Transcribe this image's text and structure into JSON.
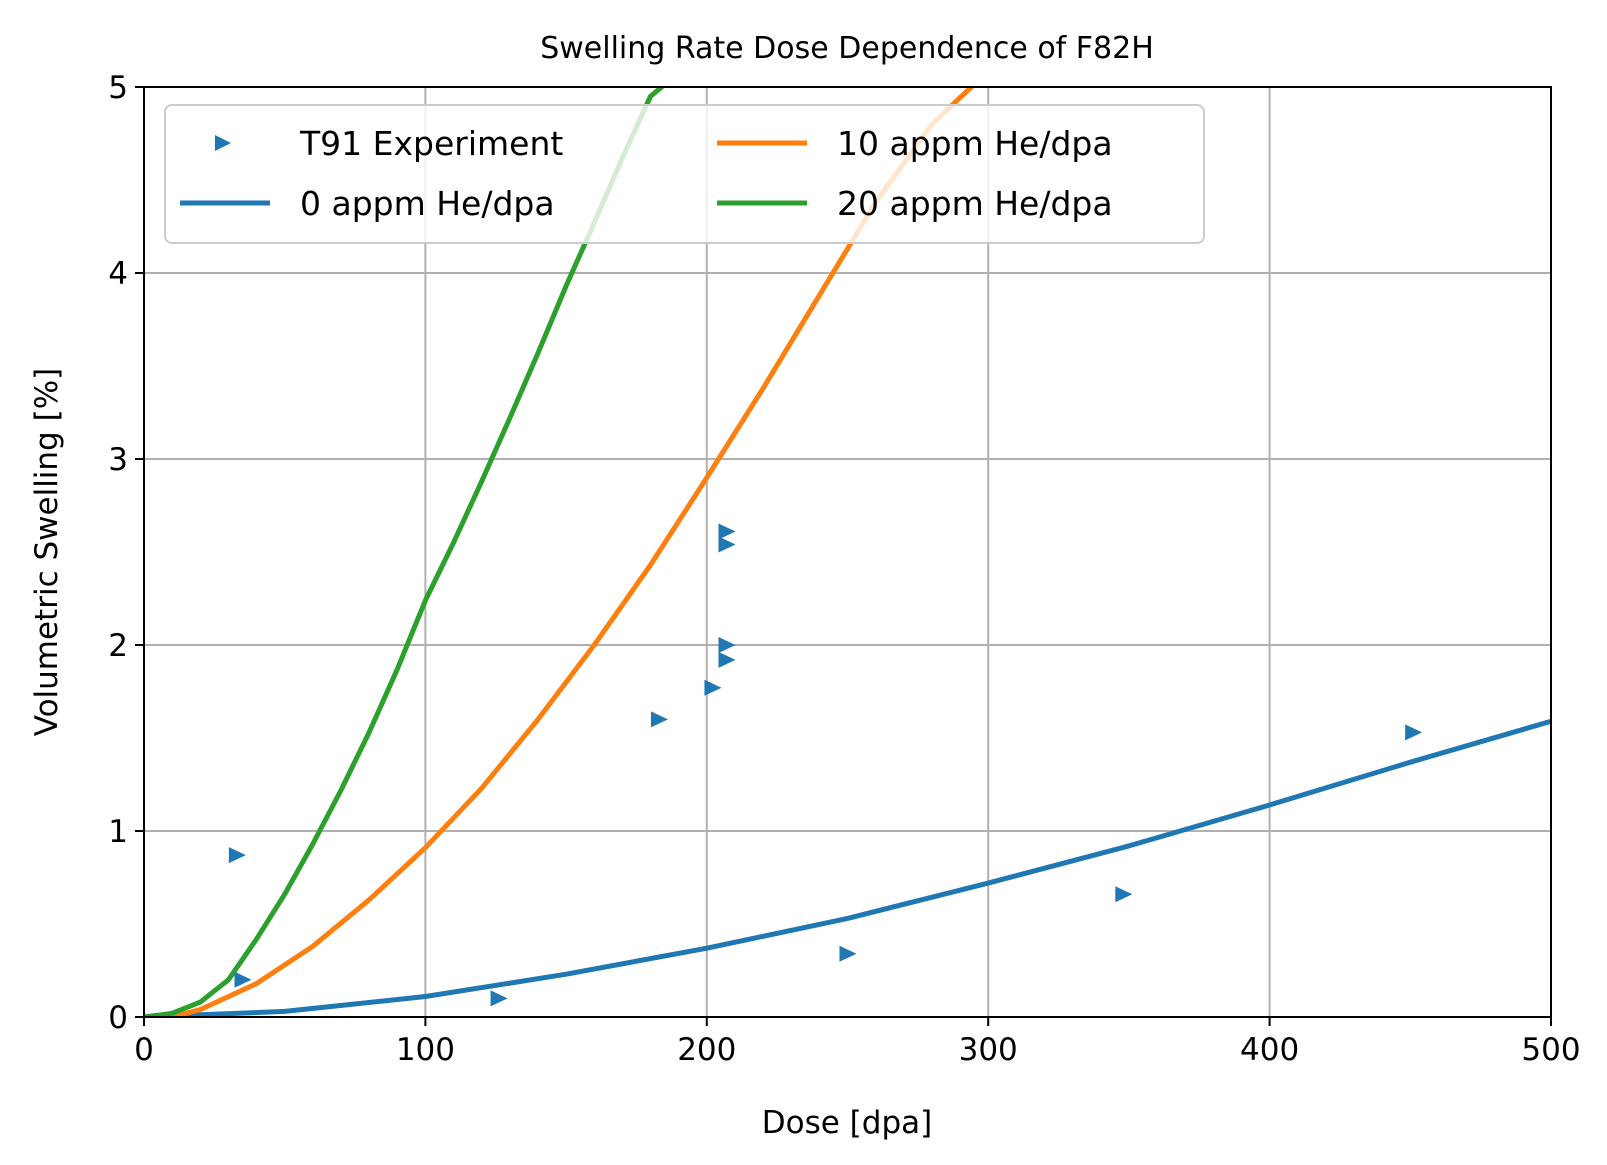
{
  "chart_data": {
    "type": "line",
    "title": "Swelling Rate Dose Dependence of F82H",
    "xlabel": "Dose [dpa]",
    "ylabel": "Volumetric Swelling [%]",
    "xlim": [
      0,
      500
    ],
    "ylim": [
      0,
      5
    ],
    "xticks": [
      "0",
      "100",
      "200",
      "300",
      "400",
      "500"
    ],
    "yticks": [
      "0",
      "1",
      "2",
      "3",
      "4",
      "5"
    ],
    "grid": true,
    "legend_position": "top-left",
    "legend_columns": 2,
    "colors": {
      "experiment": "#1f77b4",
      "he0": "#1f77b4",
      "he10": "#ff7f0e",
      "he20": "#2ca02c",
      "grid": "#b0b0b0",
      "axes": "#000000"
    },
    "scatter": {
      "name": "T91 Experiment",
      "marker": "triangle-right",
      "x": [
        33,
        35,
        126,
        183,
        202,
        207,
        207,
        207,
        207,
        250,
        348,
        451
      ],
      "y": [
        0.87,
        0.2,
        0.1,
        1.6,
        1.77,
        2.61,
        2.54,
        2.0,
        1.92,
        0.34,
        0.66,
        1.53
      ]
    },
    "series": [
      {
        "name": "0 appm He/dpa",
        "x": [
          0,
          50,
          100,
          150,
          200,
          250,
          300,
          350,
          400,
          450,
          500
        ],
        "y": [
          0,
          0.03,
          0.11,
          0.23,
          0.37,
          0.53,
          0.72,
          0.92,
          1.14,
          1.37,
          1.59
        ]
      },
      {
        "name": "10 appm He/dpa",
        "x": [
          10,
          20,
          40,
          60,
          80,
          100,
          120,
          140,
          160,
          180,
          200,
          220,
          240,
          260,
          280,
          294
        ],
        "y": [
          0,
          0.04,
          0.18,
          0.38,
          0.63,
          0.91,
          1.23,
          1.6,
          2.0,
          2.43,
          2.9,
          3.38,
          3.88,
          4.38,
          4.8,
          5.0
        ]
      },
      {
        "name": "20 appm He/dpa",
        "x": [
          0,
          10,
          20,
          30,
          40,
          50,
          60,
          70,
          80,
          90,
          100,
          110,
          120,
          130,
          140,
          150,
          160,
          170,
          180,
          184
        ],
        "y": [
          0,
          0.02,
          0.08,
          0.2,
          0.42,
          0.66,
          0.93,
          1.22,
          1.53,
          1.87,
          2.24,
          2.55,
          2.88,
          3.22,
          3.57,
          3.93,
          4.27,
          4.62,
          4.95,
          5.0
        ]
      }
    ]
  }
}
